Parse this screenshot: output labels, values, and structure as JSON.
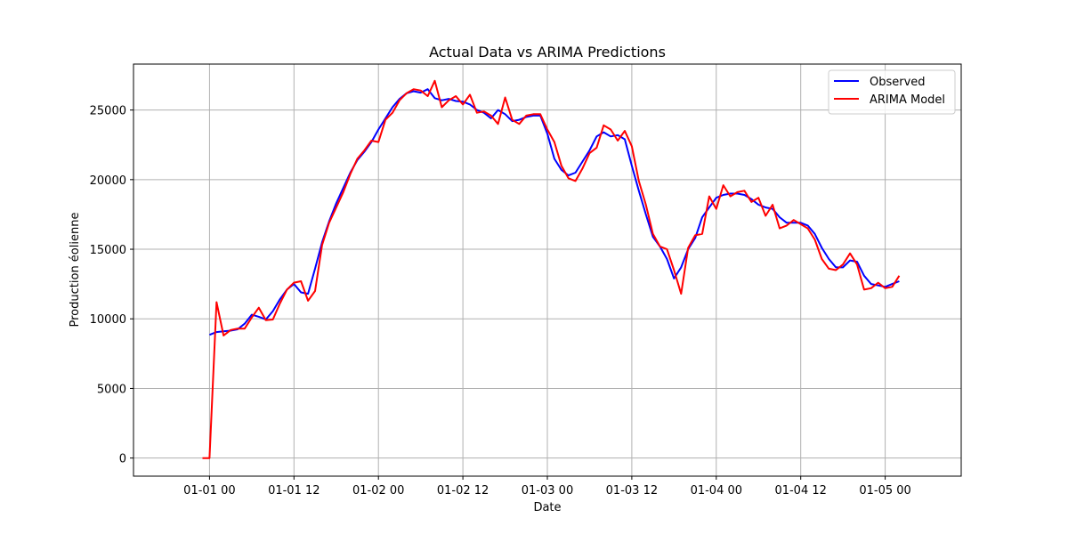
{
  "chart_data": {
    "type": "line",
    "title": "Actual Data vs ARIMA Predictions",
    "xlabel": "Date",
    "ylabel": "Production éolienne",
    "xlim": [
      -0.45,
      4.45
    ],
    "ylim": [
      -1300,
      28300
    ],
    "x_ticks": [
      {
        "value": 0.0,
        "label": "01-01 00"
      },
      {
        "value": 0.5,
        "label": "01-01 12"
      },
      {
        "value": 1.0,
        "label": "01-02 00"
      },
      {
        "value": 1.5,
        "label": "01-02 12"
      },
      {
        "value": 2.0,
        "label": "01-03 00"
      },
      {
        "value": 2.5,
        "label": "01-03 12"
      },
      {
        "value": 3.0,
        "label": "01-04 00"
      },
      {
        "value": 3.5,
        "label": "01-04 12"
      },
      {
        "value": 4.0,
        "label": "01-05 00"
      }
    ],
    "y_ticks": [
      0,
      5000,
      10000,
      15000,
      20000,
      25000
    ],
    "x_unit_note": "x in days since 01-01 00",
    "grid": true,
    "legend": "top-right",
    "series": [
      {
        "name": "Observed",
        "color": "#0000ff",
        "x": [
          0.0,
          0.0417,
          0.0833,
          0.125,
          0.1667,
          0.2083,
          0.25,
          0.2917,
          0.3333,
          0.375,
          0.4167,
          0.4583,
          0.5,
          0.5417,
          0.5833,
          0.625,
          0.6667,
          0.7083,
          0.75,
          0.7917,
          0.8333,
          0.875,
          0.9167,
          0.9583,
          1.0,
          1.0417,
          1.0833,
          1.125,
          1.1667,
          1.2083,
          1.25,
          1.2917,
          1.3333,
          1.375,
          1.4167,
          1.4583,
          1.5,
          1.5417,
          1.5833,
          1.625,
          1.6667,
          1.7083,
          1.75,
          1.7917,
          1.8333,
          1.875,
          1.9167,
          1.9583,
          2.0,
          2.0417,
          2.0833,
          2.125,
          2.1667,
          2.2083,
          2.25,
          2.2917,
          2.3333,
          2.375,
          2.4167,
          2.4583,
          2.5,
          2.5417,
          2.5833,
          2.625,
          2.6667,
          2.7083,
          2.75,
          2.7917,
          2.8333,
          2.875,
          2.9167,
          2.9583,
          3.0,
          3.0417,
          3.0833,
          3.125,
          3.1667,
          3.2083,
          3.25,
          3.2917,
          3.3333,
          3.375,
          3.4167,
          3.4583,
          3.5,
          3.5417,
          3.5833,
          3.625,
          3.6667,
          3.7083,
          3.75,
          3.7917,
          3.8333,
          3.875,
          3.9167,
          3.9583,
          4.0,
          4.0417,
          4.0833
        ],
        "y": [
          8850,
          9050,
          9100,
          9150,
          9250,
          9650,
          10300,
          10150,
          9950,
          10550,
          11400,
          12100,
          12500,
          11900,
          11800,
          13600,
          15500,
          17000,
          18300,
          19400,
          20500,
          21400,
          22000,
          22700,
          23600,
          24400,
          25200,
          25800,
          26200,
          26350,
          26250,
          26500,
          25850,
          25700,
          25800,
          25650,
          25600,
          25400,
          25000,
          24800,
          24400,
          25000,
          24700,
          24200,
          24300,
          24500,
          24600,
          24600,
          23300,
          21500,
          20700,
          20300,
          20500,
          21300,
          22100,
          23100,
          23400,
          23100,
          23200,
          22900,
          21000,
          19200,
          17500,
          15900,
          15200,
          14300,
          12900,
          13700,
          15000,
          15800,
          17300,
          18000,
          18700,
          18900,
          19000,
          19000,
          18900,
          18600,
          18200,
          18000,
          17900,
          17300,
          16900,
          16900,
          16900,
          16700,
          16100,
          15100,
          14300,
          13700,
          13700,
          14200,
          14100,
          13100,
          12500,
          12400,
          12300,
          12500,
          12700
        ]
      },
      {
        "name": "ARIMA Model",
        "color": "#ff0000",
        "x": [
          -0.0417,
          0.0,
          0.0417,
          0.0833,
          0.125,
          0.1667,
          0.2083,
          0.25,
          0.2917,
          0.3333,
          0.375,
          0.4167,
          0.4583,
          0.5,
          0.5417,
          0.5833,
          0.625,
          0.6667,
          0.7083,
          0.75,
          0.7917,
          0.8333,
          0.875,
          0.9167,
          0.9583,
          1.0,
          1.0417,
          1.0833,
          1.125,
          1.1667,
          1.2083,
          1.25,
          1.2917,
          1.3333,
          1.375,
          1.4167,
          1.4583,
          1.5,
          1.5417,
          1.5833,
          1.625,
          1.6667,
          1.7083,
          1.75,
          1.7917,
          1.8333,
          1.875,
          1.9167,
          1.9583,
          2.0,
          2.0417,
          2.0833,
          2.125,
          2.1667,
          2.2083,
          2.25,
          2.2917,
          2.3333,
          2.375,
          2.4167,
          2.4583,
          2.5,
          2.5417,
          2.5833,
          2.625,
          2.6667,
          2.7083,
          2.75,
          2.7917,
          2.8333,
          2.875,
          2.9167,
          2.9583,
          3.0,
          3.0417,
          3.0833,
          3.125,
          3.1667,
          3.2083,
          3.25,
          3.2917,
          3.3333,
          3.375,
          3.4167,
          3.4583,
          3.5,
          3.5417,
          3.5833,
          3.625,
          3.6667,
          3.7083,
          3.75,
          3.7917,
          3.8333,
          3.875,
          3.9167,
          3.9583,
          4.0,
          4.0417,
          4.0833
        ],
        "y": [
          0,
          0,
          11200,
          8800,
          9200,
          9300,
          9300,
          10100,
          10800,
          9900,
          9950,
          11100,
          12100,
          12600,
          12700,
          11300,
          12000,
          15300,
          16900,
          18000,
          19100,
          20400,
          21500,
          22100,
          22800,
          22700,
          24300,
          24800,
          25700,
          26200,
          26500,
          26400,
          26000,
          27100,
          25200,
          25700,
          26000,
          25400,
          26100,
          24800,
          24900,
          24600,
          24000,
          25900,
          24300,
          24000,
          24600,
          24700,
          24700,
          23600,
          22700,
          21000,
          20100,
          19900,
          20800,
          21900,
          22300,
          23900,
          23600,
          22800,
          23500,
          22400,
          19900,
          18200,
          16100,
          15200,
          15000,
          13500,
          11800,
          15100,
          16000,
          16100,
          18800,
          17900,
          19600,
          18800,
          19100,
          19200,
          18400,
          18700,
          17400,
          18200,
          16500,
          16700,
          17100,
          16800,
          16500,
          15700,
          14300,
          13600,
          13500,
          13900,
          14700,
          13900,
          12100,
          12200,
          12600,
          12200,
          12300,
          13100
        ]
      }
    ]
  }
}
